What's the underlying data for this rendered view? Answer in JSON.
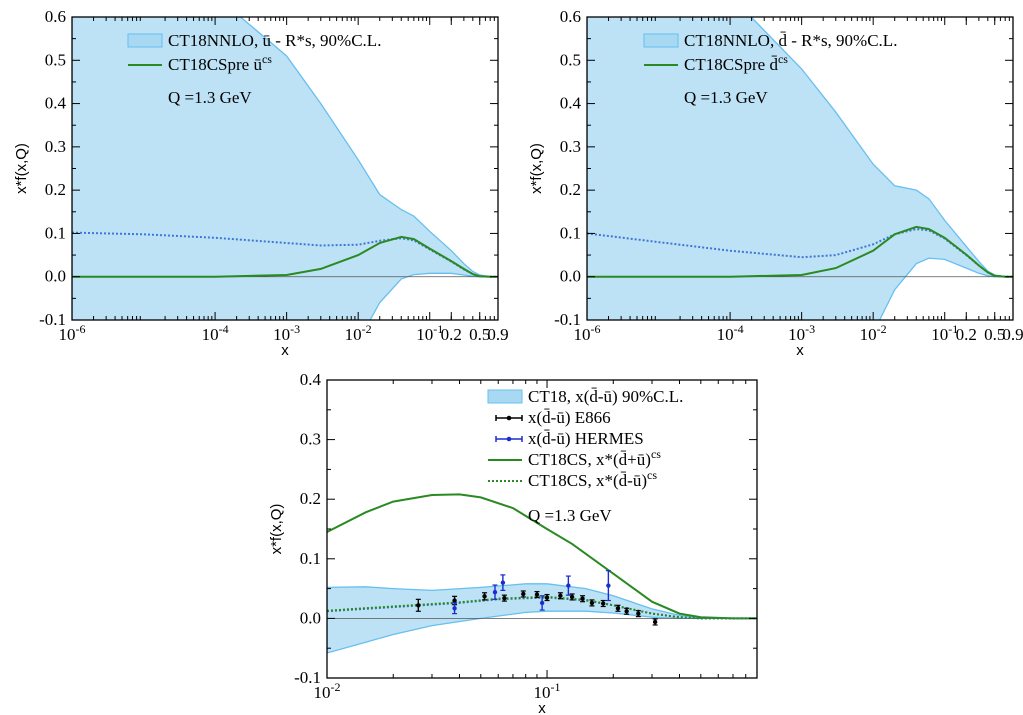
{
  "colors": {
    "band_fill": "#a8d8f2",
    "band_edge": "#66bff0",
    "green": "#2a8a22",
    "blue_dot": "#3f77d6",
    "e866": "#000000",
    "hermes": "#1a2ecf",
    "zero_line": "#555555"
  },
  "chart_data": [
    {
      "id": "panel-ubar",
      "type": "area",
      "xscale": "log",
      "xlim": [
        1e-06,
        0.9
      ],
      "ylim": [
        -0.1,
        0.6
      ],
      "xlabel": "x",
      "ylabel": "x*f(x,Q)",
      "xticks": [
        {
          "value": 1e-06,
          "mant": "10",
          "exp": "-6"
        },
        {
          "value": 0.0001,
          "mant": "10",
          "exp": "-4"
        },
        {
          "value": 0.001,
          "mant": "10",
          "exp": "-3"
        },
        {
          "value": 0.01,
          "mant": "10",
          "exp": "-2"
        },
        {
          "value": 0.1,
          "mant": "10",
          "exp": "-1"
        },
        {
          "value": 0.2,
          "mant": "0.2",
          "exp": ""
        },
        {
          "value": 0.5,
          "mant": "0.5",
          "exp": ""
        },
        {
          "value": 0.9,
          "mant": "0.9",
          "exp": ""
        }
      ],
      "yticks": [
        "-0.1",
        "0.0",
        "0.1",
        "0.2",
        "0.3",
        "0.4",
        "0.5",
        "0.6"
      ],
      "legend": [
        {
          "kind": "band",
          "text": "CT18NNLO, ū - R*s, 90%C.L."
        },
        {
          "kind": "line",
          "text": "CT18CSpre ū",
          "sup": "cs"
        }
      ],
      "note": "Q =1.3 GeV",
      "band": {
        "x": [
          1e-06,
          1e-05,
          0.0001,
          0.001,
          0.003,
          0.01,
          0.02,
          0.04,
          0.06,
          0.1,
          0.2,
          0.3,
          0.4,
          0.5,
          0.7,
          0.9
        ],
        "upper": [
          0.72,
          0.7,
          0.65,
          0.51,
          0.4,
          0.27,
          0.19,
          0.155,
          0.14,
          0.105,
          0.06,
          0.03,
          0.012,
          0.004,
          0.0005,
          0.0
        ],
        "lower": [
          -0.55,
          -0.52,
          -0.45,
          -0.35,
          -0.26,
          -0.15,
          -0.06,
          -0.005,
          0.005,
          0.008,
          0.008,
          0.004,
          0.001,
          0.0,
          0.0,
          0.0
        ]
      },
      "series": [
        {
          "id": "central",
          "style": "dotted",
          "x": [
            1e-06,
            1e-05,
            0.0001,
            0.001,
            0.003,
            0.01,
            0.02,
            0.04,
            0.06,
            0.1,
            0.2,
            0.3,
            0.4,
            0.5,
            0.7,
            0.9
          ],
          "y": [
            0.102,
            0.098,
            0.09,
            0.078,
            0.072,
            0.074,
            0.083,
            0.089,
            0.084,
            0.063,
            0.035,
            0.017,
            0.006,
            0.001,
            0.0,
            0.0
          ]
        },
        {
          "id": "cs",
          "style": "solid",
          "x": [
            1e-06,
            1e-05,
            0.0001,
            0.001,
            0.003,
            0.01,
            0.02,
            0.04,
            0.06,
            0.1,
            0.2,
            0.3,
            0.4,
            0.5,
            0.7,
            0.9
          ],
          "y": [
            0.0,
            0.0,
            0.0,
            0.004,
            0.018,
            0.05,
            0.078,
            0.092,
            0.087,
            0.065,
            0.036,
            0.018,
            0.006,
            0.001,
            0.0,
            0.0
          ]
        }
      ]
    },
    {
      "id": "panel-dbar",
      "type": "area",
      "xscale": "log",
      "xlim": [
        1e-06,
        0.9
      ],
      "ylim": [
        -0.1,
        0.6
      ],
      "xlabel": "x",
      "ylabel": "x*f(x,Q)",
      "xticks": [
        {
          "value": 1e-06,
          "mant": "10",
          "exp": "-6"
        },
        {
          "value": 0.0001,
          "mant": "10",
          "exp": "-4"
        },
        {
          "value": 0.001,
          "mant": "10",
          "exp": "-3"
        },
        {
          "value": 0.01,
          "mant": "10",
          "exp": "-2"
        },
        {
          "value": 0.1,
          "mant": "10",
          "exp": "-1"
        },
        {
          "value": 0.2,
          "mant": "0.2",
          "exp": ""
        },
        {
          "value": 0.5,
          "mant": "0.5",
          "exp": ""
        },
        {
          "value": 0.9,
          "mant": "0.9",
          "exp": ""
        }
      ],
      "yticks": [
        "-0.1",
        "0.0",
        "0.1",
        "0.2",
        "0.3",
        "0.4",
        "0.5",
        "0.6"
      ],
      "legend": [
        {
          "kind": "band",
          "text": "CT18NNLO, d̄ - R*s,  90%C.L."
        },
        {
          "kind": "line",
          "text": "CT18CSpre d̄",
          "sup": "cs"
        }
      ],
      "note": "Q =1.3 GeV",
      "band": {
        "x": [
          1e-06,
          1e-05,
          0.0001,
          0.001,
          0.003,
          0.01,
          0.02,
          0.04,
          0.06,
          0.1,
          0.2,
          0.3,
          0.4,
          0.5,
          0.7,
          0.9
        ],
        "upper": [
          0.72,
          0.7,
          0.65,
          0.48,
          0.38,
          0.26,
          0.21,
          0.2,
          0.18,
          0.13,
          0.07,
          0.035,
          0.013,
          0.004,
          0.0005,
          0.0
        ],
        "lower": [
          -0.55,
          -0.52,
          -0.45,
          -0.35,
          -0.25,
          -0.13,
          -0.03,
          0.03,
          0.043,
          0.04,
          0.02,
          0.008,
          0.002,
          0.0,
          0.0,
          0.0
        ]
      },
      "series": [
        {
          "id": "central",
          "style": "dotted",
          "x": [
            1e-06,
            1e-05,
            0.0001,
            0.001,
            0.003,
            0.01,
            0.02,
            0.04,
            0.06,
            0.1,
            0.2,
            0.3,
            0.4,
            0.5,
            0.7,
            0.9
          ],
          "y": [
            0.1,
            0.08,
            0.06,
            0.045,
            0.05,
            0.075,
            0.098,
            0.11,
            0.107,
            0.088,
            0.05,
            0.026,
            0.01,
            0.002,
            0.0,
            0.0
          ]
        },
        {
          "id": "cs",
          "style": "solid",
          "x": [
            1e-06,
            1e-05,
            0.0001,
            0.001,
            0.003,
            0.01,
            0.02,
            0.04,
            0.06,
            0.1,
            0.2,
            0.3,
            0.4,
            0.5,
            0.7,
            0.9
          ],
          "y": [
            0.0,
            0.0,
            0.0,
            0.004,
            0.02,
            0.06,
            0.098,
            0.115,
            0.11,
            0.09,
            0.051,
            0.026,
            0.01,
            0.002,
            0.0,
            0.0
          ]
        }
      ]
    },
    {
      "id": "panel-dbar-ubar",
      "type": "area",
      "xscale": "log",
      "xlim": [
        0.01,
        0.9
      ],
      "ylim": [
        -0.1,
        0.4
      ],
      "xlabel": "x",
      "ylabel": "x*f(x,Q)",
      "xticks": [
        {
          "value": 0.01,
          "mant": "10",
          "exp": "-2"
        },
        {
          "value": 0.1,
          "mant": "10",
          "exp": "-1"
        }
      ],
      "yticks": [
        "-0.1",
        "0.0",
        "0.1",
        "0.2",
        "0.3",
        "0.4"
      ],
      "legend": [
        {
          "kind": "band",
          "text": "CT18, x(d̄-ū) 90%C.L."
        },
        {
          "kind": "errbar-black",
          "text": "x(d̄-ū) E866"
        },
        {
          "kind": "errbar-blue",
          "text": "x(d̄-ū) HERMES"
        },
        {
          "kind": "line",
          "text": "CT18CS, x*(d̄+ū)",
          "sup": "cs"
        },
        {
          "kind": "dotted-green",
          "text": "CT18CS, x*(d̄-ū)",
          "sup": "cs"
        }
      ],
      "note": "Q =1.3 GeV",
      "band": {
        "x": [
          0.01,
          0.015,
          0.02,
          0.03,
          0.05,
          0.08,
          0.1,
          0.15,
          0.2,
          0.3,
          0.4,
          0.5,
          0.7,
          0.9
        ],
        "upper": [
          0.052,
          0.053,
          0.05,
          0.047,
          0.052,
          0.058,
          0.058,
          0.05,
          0.038,
          0.016,
          0.005,
          0.001,
          0.0,
          0.0
        ],
        "lower": [
          -0.058,
          -0.04,
          -0.027,
          -0.012,
          0.0,
          0.01,
          0.012,
          0.012,
          0.009,
          0.002,
          0.0,
          0.0,
          0.0,
          0.0
        ]
      },
      "series": [
        {
          "id": "sum-cs",
          "style": "solid",
          "x": [
            0.01,
            0.015,
            0.02,
            0.03,
            0.04,
            0.05,
            0.07,
            0.1,
            0.13,
            0.2,
            0.3,
            0.4,
            0.5,
            0.7,
            0.9
          ],
          "y": [
            0.145,
            0.178,
            0.196,
            0.207,
            0.208,
            0.203,
            0.185,
            0.15,
            0.125,
            0.075,
            0.028,
            0.008,
            0.002,
            0.0,
            0.0
          ]
        },
        {
          "id": "diff-central",
          "style": "dotted-blue",
          "x": [
            0.01,
            0.02,
            0.04,
            0.06,
            0.1,
            0.15,
            0.2,
            0.3,
            0.4,
            0.5,
            0.7,
            0.9
          ],
          "y": [
            0.012,
            0.019,
            0.026,
            0.032,
            0.035,
            0.03,
            0.022,
            0.008,
            0.002,
            0.0,
            0.0,
            0.0
          ]
        },
        {
          "id": "diff-cs",
          "style": "dotted-green",
          "x": [
            0.01,
            0.02,
            0.04,
            0.06,
            0.1,
            0.15,
            0.2,
            0.3,
            0.4,
            0.5,
            0.7,
            0.9
          ],
          "y": [
            0.013,
            0.02,
            0.027,
            0.033,
            0.036,
            0.031,
            0.022,
            0.008,
            0.002,
            0.0,
            0.0,
            0.0
          ]
        }
      ],
      "points": [
        {
          "dataset": "E866",
          "x": 0.026,
          "y": 0.022,
          "err": 0.01
        },
        {
          "dataset": "E866",
          "x": 0.038,
          "y": 0.03,
          "err": 0.007
        },
        {
          "dataset": "E866",
          "x": 0.052,
          "y": 0.037,
          "err": 0.006
        },
        {
          "dataset": "E866",
          "x": 0.064,
          "y": 0.034,
          "err": 0.005
        },
        {
          "dataset": "E866",
          "x": 0.078,
          "y": 0.041,
          "err": 0.005
        },
        {
          "dataset": "E866",
          "x": 0.09,
          "y": 0.04,
          "err": 0.005
        },
        {
          "dataset": "E866",
          "x": 0.1,
          "y": 0.035,
          "err": 0.005
        },
        {
          "dataset": "E866",
          "x": 0.115,
          "y": 0.038,
          "err": 0.005
        },
        {
          "dataset": "E866",
          "x": 0.13,
          "y": 0.036,
          "err": 0.005
        },
        {
          "dataset": "E866",
          "x": 0.145,
          "y": 0.033,
          "err": 0.005
        },
        {
          "dataset": "E866",
          "x": 0.16,
          "y": 0.026,
          "err": 0.005
        },
        {
          "dataset": "E866",
          "x": 0.18,
          "y": 0.025,
          "err": 0.005
        },
        {
          "dataset": "E866",
          "x": 0.21,
          "y": 0.017,
          "err": 0.005
        },
        {
          "dataset": "E866",
          "x": 0.23,
          "y": 0.012,
          "err": 0.005
        },
        {
          "dataset": "E866",
          "x": 0.26,
          "y": 0.008,
          "err": 0.005
        },
        {
          "dataset": "E866",
          "x": 0.31,
          "y": -0.006,
          "err": 0.005
        },
        {
          "dataset": "HERMES",
          "x": 0.038,
          "y": 0.017,
          "err": 0.009
        },
        {
          "dataset": "HERMES",
          "x": 0.058,
          "y": 0.044,
          "err": 0.012
        },
        {
          "dataset": "HERMES",
          "x": 0.063,
          "y": 0.06,
          "err": 0.013
        },
        {
          "dataset": "HERMES",
          "x": 0.095,
          "y": 0.026,
          "err": 0.012
        },
        {
          "dataset": "HERMES",
          "x": 0.125,
          "y": 0.055,
          "err": 0.016
        },
        {
          "dataset": "HERMES",
          "x": 0.19,
          "y": 0.055,
          "err": 0.025
        }
      ]
    }
  ]
}
